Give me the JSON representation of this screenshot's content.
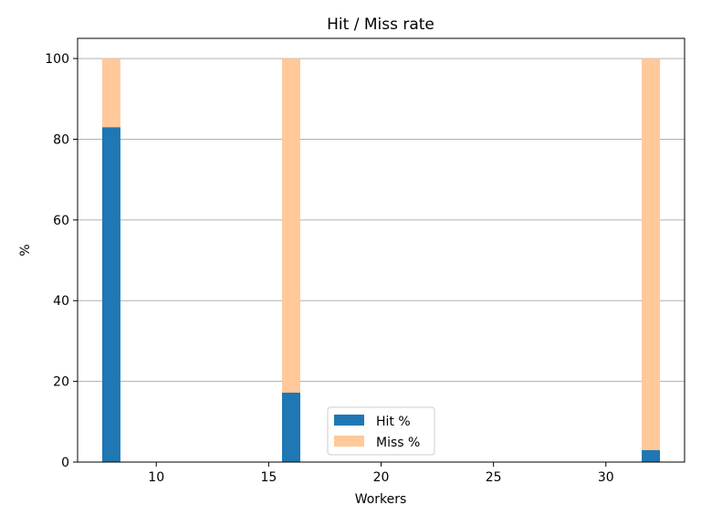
{
  "chart_data": {
    "type": "bar",
    "stacked": true,
    "title": "Hit / Miss rate",
    "xlabel": "Workers",
    "ylabel": "%",
    "x": [
      8,
      16,
      32
    ],
    "series": [
      {
        "name": "Hit %",
        "values": [
          83,
          17.2,
          3
        ],
        "color": "#1f77b4"
      },
      {
        "name": "Miss %",
        "values": [
          17,
          82.8,
          97
        ],
        "color": "#ffc99a"
      }
    ],
    "xlim": [
      6.5,
      33.5
    ],
    "ylim": [
      0,
      105
    ],
    "xticks": [
      10,
      15,
      20,
      25,
      30
    ],
    "yticks": [
      0,
      20,
      40,
      60,
      80,
      100
    ],
    "grid": "y",
    "legend_position": "bottom-center"
  }
}
